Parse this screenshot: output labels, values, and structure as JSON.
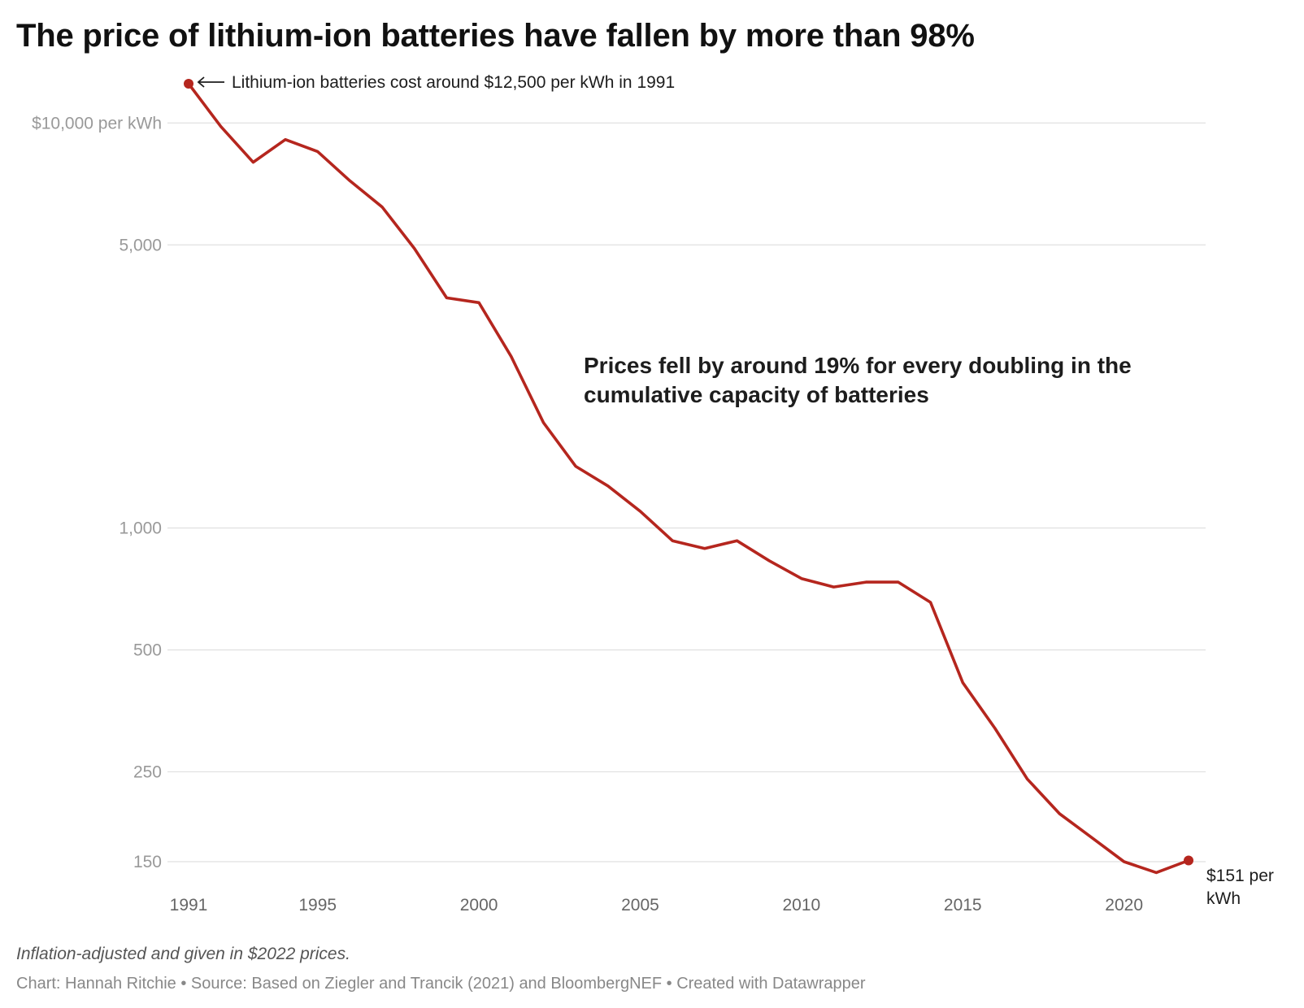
{
  "title": "The price of lithium-ion batteries have fallen by more than 98%",
  "footer": {
    "note": "Inflation-adjusted and given in $2022 prices.",
    "credit": "Chart: Hannah Ritchie • Source: Based on Ziegler and Trancik (2021) and BloombergNEF • Created with Datawrapper"
  },
  "colors": {
    "line": "#b5261e",
    "grid": "#e0e0e0",
    "tick_label": "#999999",
    "axis_label": "#666666",
    "annotation": "#1d1d1d"
  },
  "chart_data": {
    "type": "line",
    "title": "The price of lithium-ion batteries have fallen by more than 98%",
    "xlabel": "",
    "ylabel": "",
    "yscale": "log",
    "grid": "horizontal",
    "xlim": [
      1991,
      2022
    ],
    "ylim": [
      133,
      12500
    ],
    "x_ticks": [
      1991,
      1995,
      2000,
      2005,
      2010,
      2015,
      2020
    ],
    "x_tick_labels": [
      "1991",
      "1995",
      "2000",
      "2005",
      "2010",
      "2015",
      "2020"
    ],
    "y_ticks": [
      10000,
      5000,
      1000,
      500,
      250,
      150
    ],
    "y_tick_labels": [
      "$10,000 per kWh",
      "5,000",
      "1,000",
      "500",
      "250",
      "150"
    ],
    "series": [
      {
        "x": [
          1991,
          1992,
          1993,
          1994,
          1995,
          1996,
          1997,
          1998,
          1999,
          2000,
          2001,
          2002,
          2003,
          2004,
          2005,
          2006,
          2007,
          2008,
          2009,
          2010,
          2011,
          2012,
          2013,
          2014,
          2015,
          2016,
          2017,
          2018,
          2019,
          2020,
          2021,
          2022
        ],
        "values": [
          12500,
          9800,
          8000,
          9100,
          8500,
          7200,
          6200,
          4900,
          3700,
          3600,
          2650,
          1820,
          1420,
          1270,
          1100,
          930,
          890,
          930,
          830,
          750,
          715,
          735,
          735,
          655,
          415,
          320,
          240,
          197,
          172,
          150,
          141,
          151
        ]
      }
    ],
    "annotations": {
      "start": "Lithium-ion batteries cost around $12,500 per kWh in 1991",
      "end_line1": "$151 per",
      "end_line2": "kWh",
      "callout_line1": "Prices fell by around 19% for every doubling in the",
      "callout_line2": "cumulative capacity of batteries"
    }
  }
}
